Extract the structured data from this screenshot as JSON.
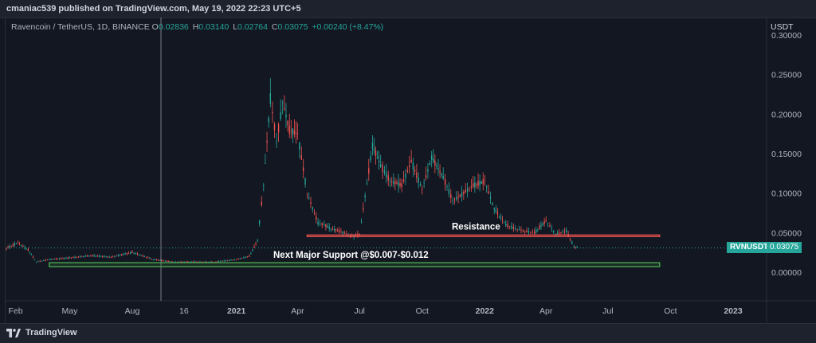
{
  "header": {
    "publisher": "cmaniac539 published on TradingView.com, May 19, 2022 22:23 UTC+5"
  },
  "legend": {
    "symbol": "Ravencoin / TetherUS, 1D, BINANCE",
    "o_label": "O",
    "o_value": "0.02836",
    "h_label": "H",
    "h_value": "0.03140",
    "l_label": "L",
    "l_value": "0.02764",
    "c_label": "C",
    "c_value": "0.03075",
    "change": "+0.00240 (+8.47%)"
  },
  "price_axis": {
    "unit": "USDT",
    "ticks": [
      "0.30000",
      "0.25000",
      "0.20000",
      "0.15000",
      "0.10000",
      "0.05000",
      "0.00000"
    ]
  },
  "time_axis": {
    "ticks": [
      "Feb",
      "May",
      "Aug",
      "16",
      "2021",
      "Apr",
      "Jul",
      "Oct",
      "2022",
      "Apr",
      "Jul",
      "Oct",
      "2023"
    ]
  },
  "last_price": {
    "ticker": "RVNUSDT",
    "value": "0.03075"
  },
  "annotations": {
    "resistance": "Resistance",
    "support": "Next Major Support @$0.007-$0.012"
  },
  "footer": {
    "brand": "TradingView",
    "logo_icon": "tradingview-logo-icon"
  },
  "colors": {
    "background": "#131722",
    "up": "#26a69a",
    "down": "#ef5350",
    "resistance_line": "#ef5350",
    "support_box": "#4caf50"
  },
  "chart_data": {
    "type": "line",
    "title": "Ravencoin / TetherUS, 1D, BINANCE",
    "ylabel": "USDT",
    "ylim": [
      0,
      0.3
    ],
    "x_ticks": [
      "Feb",
      "May",
      "Aug",
      "16",
      "2021",
      "Apr",
      "Jul",
      "Oct",
      "2022",
      "Apr",
      "Jul",
      "Oct",
      "2023"
    ],
    "series": [
      {
        "name": "RVNUSDT",
        "x": [
          "2020-01-29",
          "2020-02-15",
          "2020-03-01",
          "2020-03-13",
          "2020-04-01",
          "2020-05-01",
          "2020-06-01",
          "2020-07-01",
          "2020-08-01",
          "2020-09-01",
          "2020-10-01",
          "2020-11-01",
          "2020-12-01",
          "2021-01-01",
          "2021-01-20",
          "2021-02-01",
          "2021-02-10",
          "2021-02-20",
          "2021-03-01",
          "2021-03-10",
          "2021-03-20",
          "2021-04-01",
          "2021-04-15",
          "2021-05-01",
          "2021-05-10",
          "2021-05-20",
          "2021-06-01",
          "2021-06-20",
          "2021-07-01",
          "2021-07-20",
          "2021-08-01",
          "2021-08-15",
          "2021-09-01",
          "2021-09-15",
          "2021-10-01",
          "2021-10-15",
          "2021-11-01",
          "2021-11-15",
          "2021-12-01",
          "2021-12-15",
          "2022-01-01",
          "2022-01-15",
          "2022-02-01",
          "2022-02-15",
          "2022-03-01",
          "2022-03-15",
          "2022-04-01",
          "2022-04-15",
          "2022-05-01",
          "2022-05-12",
          "2022-05-19"
        ],
        "values": [
          0.03,
          0.037,
          0.028,
          0.013,
          0.016,
          0.018,
          0.021,
          0.019,
          0.025,
          0.016,
          0.013,
          0.013,
          0.013,
          0.016,
          0.02,
          0.04,
          0.11,
          0.22,
          0.165,
          0.215,
          0.18,
          0.175,
          0.1,
          0.062,
          0.06,
          0.055,
          0.052,
          0.045,
          0.048,
          0.16,
          0.135,
          0.115,
          0.11,
          0.14,
          0.105,
          0.145,
          0.12,
          0.09,
          0.1,
          0.11,
          0.115,
          0.08,
          0.06,
          0.055,
          0.052,
          0.05,
          0.065,
          0.048,
          0.052,
          0.032,
          0.03075
        ]
      }
    ],
    "annotations": [
      {
        "type": "horizontal_line",
        "label": "Resistance",
        "y": 0.046,
        "x_start": "2021-04-15",
        "x_end": "2022-09-15"
      },
      {
        "type": "zone",
        "label": "Next Major Support @$0.007-$0.012",
        "y_range": [
          0.007,
          0.012
        ],
        "x_start": "2020-04-01",
        "x_end": "2022-09-15"
      }
    ],
    "last_value": 0.03075,
    "grid": false,
    "legend": "top-left"
  }
}
